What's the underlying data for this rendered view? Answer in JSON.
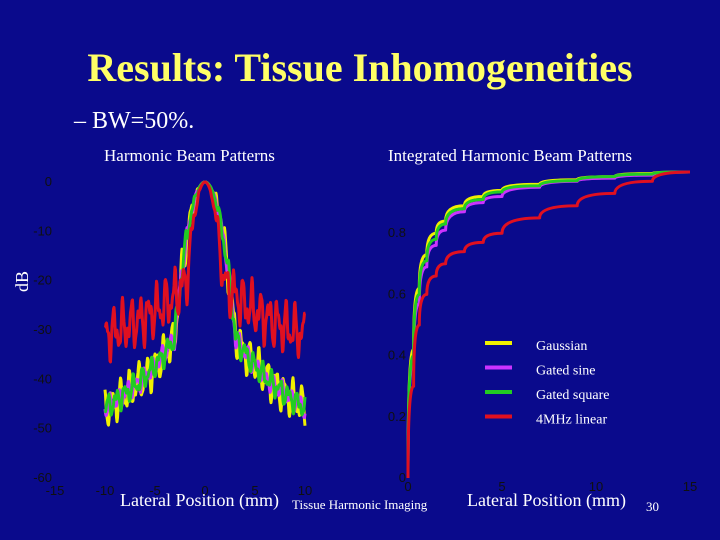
{
  "slide": {
    "title": "Results: Tissue Inhomogeneities",
    "bullet": "– BW=50%.",
    "footer": "Tissue Harmonic Imaging",
    "page_number": "30"
  },
  "colors": {
    "background": "#0a0a8c",
    "title": "#ffff66",
    "gaussian": "#f0f000",
    "gated_sine": "#cc33ff",
    "gated_square": "#22cc22",
    "linear": "#e01020"
  },
  "chart_data": [
    {
      "type": "line",
      "title": "Harmonic Beam Patterns",
      "xlabel": "Lateral Position (mm)",
      "ylabel": "dB",
      "xlim": [
        -15,
        15
      ],
      "ylim": [
        -60,
        0
      ],
      "xticks": [
        "-15",
        "-10",
        "-5",
        "0",
        "5",
        "10"
      ],
      "yticks": [
        "0",
        "-10",
        "-20",
        "-30",
        "-40",
        "-50",
        "-60"
      ],
      "grid": false,
      "series": [
        {
          "name": "Gaussian",
          "peak": 0,
          "half_width": 1.6,
          "floor": -44,
          "slope": 1.6,
          "ripple": 4.8
        },
        {
          "name": "Gated sine",
          "peak": 0,
          "half_width": 1.6,
          "floor": -41,
          "slope": 1.6,
          "ripple": 2.5
        },
        {
          "name": "Gated square",
          "peak": 0,
          "half_width": 1.6,
          "floor": -42,
          "slope": 1.6,
          "ripple": 3.0
        },
        {
          "name": "4MHz linear",
          "peak": 0,
          "half_width": 1.2,
          "floor": -35,
          "slope": 0.9,
          "ripple": 6.5
        }
      ]
    },
    {
      "type": "line",
      "title": "Integrated Harmonic Beam Patterns",
      "xlabel": "Lateral Position (mm)",
      "xlim": [
        0,
        15
      ],
      "ylim": [
        0,
        1
      ],
      "xticks": [
        "0",
        "5",
        "10",
        "15"
      ],
      "yticks": [
        "0.8",
        "0.6",
        "0.4",
        "0.2",
        "0"
      ],
      "legend": "right",
      "series": [
        {
          "name": "Gaussian",
          "x": [
            0,
            0.3,
            0.6,
            1,
            1.5,
            2,
            3,
            4,
            5,
            7,
            9,
            11,
            13,
            15
          ],
          "y": [
            0,
            0.42,
            0.62,
            0.73,
            0.8,
            0.84,
            0.89,
            0.92,
            0.94,
            0.96,
            0.975,
            0.985,
            0.995,
            1
          ]
        },
        {
          "name": "Gated sine",
          "x": [
            0,
            0.3,
            0.6,
            1,
            1.5,
            2,
            3,
            4,
            5,
            7,
            9,
            11,
            13,
            15
          ],
          "y": [
            0,
            0.38,
            0.57,
            0.69,
            0.76,
            0.81,
            0.87,
            0.9,
            0.92,
            0.95,
            0.97,
            0.98,
            0.99,
            1
          ]
        },
        {
          "name": "Gated square",
          "x": [
            0,
            0.3,
            0.6,
            1,
            1.5,
            2,
            3,
            4,
            5,
            7,
            9,
            11,
            13,
            15
          ],
          "y": [
            0,
            0.4,
            0.6,
            0.71,
            0.78,
            0.83,
            0.88,
            0.91,
            0.935,
            0.955,
            0.972,
            0.985,
            0.993,
            1
          ]
        },
        {
          "name": "4MHz linear",
          "x": [
            0,
            0.3,
            0.6,
            1,
            1.5,
            2,
            3,
            4,
            5,
            7,
            9,
            11,
            13,
            15
          ],
          "y": [
            0,
            0.3,
            0.5,
            0.6,
            0.66,
            0.7,
            0.74,
            0.77,
            0.8,
            0.85,
            0.89,
            0.93,
            0.97,
            1
          ]
        }
      ]
    }
  ]
}
